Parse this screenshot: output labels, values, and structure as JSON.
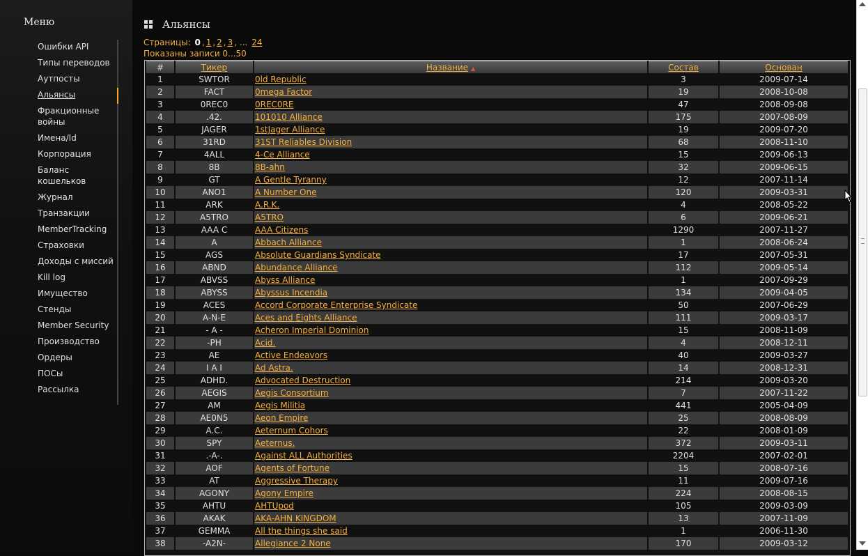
{
  "sidebar": {
    "title": "Меню",
    "items": [
      {
        "label": "Ошибки API",
        "two": false
      },
      {
        "label": "Типы переводов",
        "two": false
      },
      {
        "label": "Аутпосты",
        "two": false
      },
      {
        "label": "Альянсы",
        "two": false,
        "active": true
      },
      {
        "label": "Фракционные войны",
        "two": true
      },
      {
        "label": "Имена/Id",
        "two": false
      },
      {
        "label": "Корпорация",
        "two": false
      },
      {
        "label": "Баланс кошельков",
        "two": true
      },
      {
        "label": "Журнал",
        "two": false
      },
      {
        "label": "Транзакции",
        "two": false
      },
      {
        "label": "MemberTracking",
        "two": false
      },
      {
        "label": "Страховки",
        "two": false
      },
      {
        "label": "Доходы с миссий",
        "two": false
      },
      {
        "label": "Kill log",
        "two": false
      },
      {
        "label": "Имущество",
        "two": false
      },
      {
        "label": "Стенды",
        "two": false
      },
      {
        "label": "Member Security",
        "two": false
      },
      {
        "label": "Производство",
        "two": false
      },
      {
        "label": "Ордеры",
        "two": false
      },
      {
        "label": "ПОСы",
        "two": false
      },
      {
        "label": "Рассылка",
        "two": false
      }
    ]
  },
  "main": {
    "title": "Альянсы",
    "pager": {
      "label": "Страницы:",
      "current": "0",
      "pages": [
        "1",
        "2",
        "3"
      ],
      "ellipsis": "...",
      "last": "24"
    },
    "records_text": "Показаны записи 0...50",
    "columns": {
      "num": "#",
      "ticker": "Тикер",
      "name": "Название",
      "sort_icon": "▲",
      "members": "Состав",
      "founded": "Основан"
    },
    "rows": [
      [
        "1",
        "SWTOR",
        "0ld Republic",
        "3",
        "2009-07-14"
      ],
      [
        "2",
        "FACT",
        "0mega Factor",
        "19",
        "2008-10-08"
      ],
      [
        "3",
        "0REC0",
        "0REC0RE",
        "47",
        "2008-09-08"
      ],
      [
        "4",
        ".42.",
        "101010 Alliance",
        "175",
        "2007-08-09"
      ],
      [
        "5",
        "JAGER",
        "1stJager Alliance",
        "19",
        "2009-07-20"
      ],
      [
        "6",
        "31RD",
        "31ST Reliables Division",
        "68",
        "2008-11-10"
      ],
      [
        "7",
        "4ALL",
        "4-Ce Alliance",
        "15",
        "2009-06-13"
      ],
      [
        "8",
        "8B",
        "8B-ahn",
        "32",
        "2009-06-15"
      ],
      [
        "9",
        "GT",
        "A Gentle Tyranny",
        "12",
        "2007-11-14"
      ],
      [
        "10",
        "ANO1",
        "A Number One",
        "120",
        "2009-03-31"
      ],
      [
        "11",
        "ARK",
        "A.R.K.",
        "4",
        "2008-05-22"
      ],
      [
        "12",
        "A5TRO",
        "A5TRO",
        "6",
        "2009-06-21"
      ],
      [
        "13",
        "AAA C",
        "AAA Citizens",
        "1290",
        "2007-11-27"
      ],
      [
        "14",
        "A",
        "Abbach Alliance",
        "1",
        "2008-06-24"
      ],
      [
        "15",
        "AGS",
        "Absolute Guardians Syndicate",
        "17",
        "2007-05-31"
      ],
      [
        "16",
        "ABND",
        "Abundance Alliance",
        "112",
        "2009-05-14"
      ],
      [
        "17",
        "ABVSS",
        "Abyss Alliance",
        "1",
        "2007-09-29"
      ],
      [
        "18",
        "ABYSS",
        "Abyssus Incendia",
        "134",
        "2009-04-05"
      ],
      [
        "19",
        "ACES",
        "Accord Corporate Enterprise Syndicate",
        "50",
        "2007-06-29"
      ],
      [
        "20",
        "A-N-E",
        "Aces and Eights Alliance",
        "111",
        "2009-03-17"
      ],
      [
        "21",
        "- A -",
        "Acheron Imperial Dominion",
        "15",
        "2008-11-09"
      ],
      [
        "22",
        "-PH",
        "Acid.",
        "4",
        "2008-12-11"
      ],
      [
        "23",
        "AE",
        "Active Endeavors",
        "40",
        "2009-03-27"
      ],
      [
        "24",
        "I A I",
        "Ad Astra.",
        "14",
        "2008-12-31"
      ],
      [
        "25",
        "ADHD.",
        "Advocated Destruction",
        "214",
        "2009-03-20"
      ],
      [
        "26",
        "AEGIS",
        "Aegis Consortium",
        "7",
        "2007-11-22"
      ],
      [
        "27",
        "AM",
        "Aegis Militia",
        "441",
        "2005-04-09"
      ],
      [
        "28",
        "AE0N5",
        "Aeon Empire",
        "25",
        "2008-08-09"
      ],
      [
        "29",
        "A.C.",
        "Aeternum Cohors",
        "22",
        "2008-01-09"
      ],
      [
        "30",
        "SPY",
        "Aeternus.",
        "372",
        "2009-03-11"
      ],
      [
        "31",
        ".-A-.",
        "Against ALL Authorities",
        "2204",
        "2007-02-01"
      ],
      [
        "32",
        "AOF",
        "Agents of Fortune",
        "15",
        "2008-07-16"
      ],
      [
        "33",
        "AT",
        "Aggressive Therapy",
        "11",
        "2009-07-16"
      ],
      [
        "34",
        "AGONY",
        "Agony Empire",
        "224",
        "2008-08-15"
      ],
      [
        "35",
        "AHTU",
        "AHTUpod",
        "105",
        "2009-03-09"
      ],
      [
        "36",
        "AKAK",
        "AKA-AHN KINGDOM",
        "13",
        "2007-11-09"
      ],
      [
        "37",
        "GEMMA",
        "All the things she said",
        "1",
        "2006-11-30"
      ],
      [
        "38",
        "-A2N-",
        "Allegiance 2 None",
        "170",
        "2009-03-12"
      ]
    ]
  },
  "colors": {
    "link": "#f5b040",
    "row_even": "#3b3b3b",
    "row_odd": "#111111"
  }
}
